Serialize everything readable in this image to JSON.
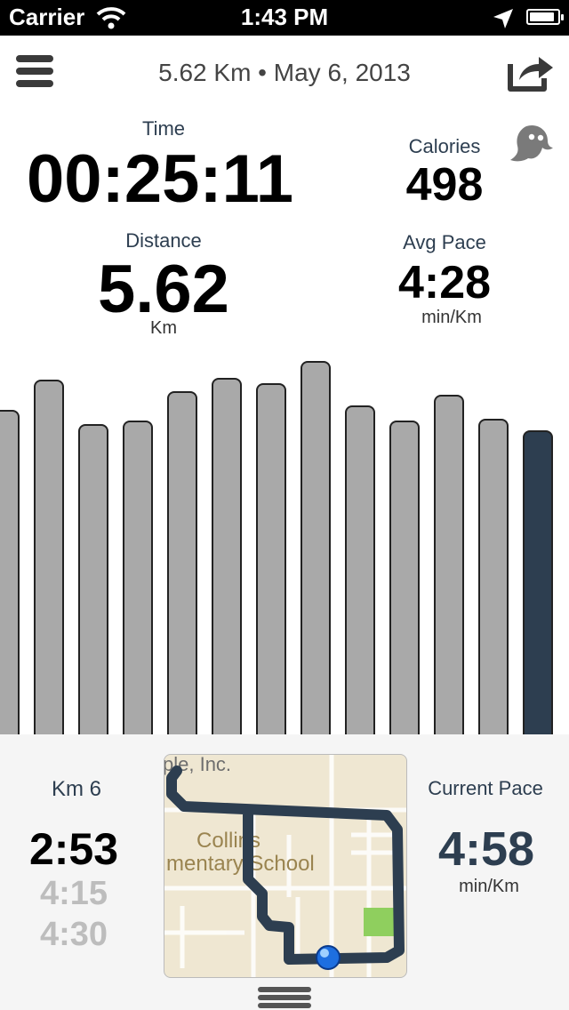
{
  "status_bar": {
    "carrier": "Carrier",
    "time": "1:43 PM",
    "battery_level": 0.9
  },
  "header": {
    "title": "5.62 Km • May 6, 2013"
  },
  "stats": {
    "time_label": "Time",
    "time_value": "00:25:11",
    "calories_label": "Calories",
    "calories_value": "498",
    "distance_label": "Distance",
    "distance_value": "5.62",
    "distance_unit": "Km",
    "pace_label": "Avg Pace",
    "pace_value": "4:28",
    "pace_unit": "min/Km"
  },
  "chart_data": {
    "type": "bar",
    "values": [
      0.87,
      0.95,
      0.83,
      0.84,
      0.92,
      0.955,
      0.94,
      1.0,
      0.88,
      0.84,
      0.91,
      0.845,
      0.815
    ],
    "current_index": 12,
    "colors": {
      "bar": "#a9a9a9",
      "current": "#2d3e50",
      "outline": "#222222"
    }
  },
  "splits": {
    "label": "Km 6",
    "current": "2:53",
    "previous": [
      "4:15",
      "4:30"
    ]
  },
  "map": {
    "label_top": "ple, Inc.",
    "label_school_1": "Collins",
    "label_school_2": "mentary School"
  },
  "current_pace": {
    "label": "Current Pace",
    "value": "4:58",
    "unit": "min/Km"
  },
  "colors": {
    "accent": "#2d3e50",
    "muted": "#bdbdbd"
  }
}
